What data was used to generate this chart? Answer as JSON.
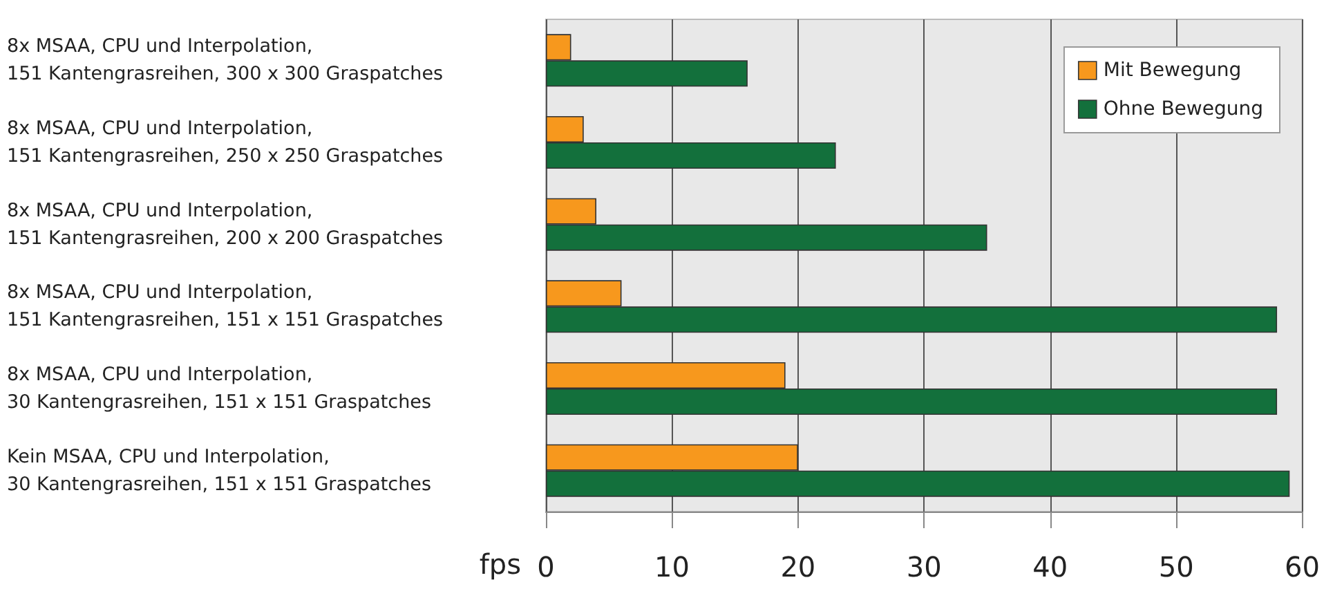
{
  "chart_data": {
    "type": "bar",
    "orientation": "horizontal",
    "xlabel": "fps",
    "categories": [
      "8x MSAA, CPU und Interpolation,\n151 Kantengrasreihen, 300 x 300 Graspatches",
      "8x MSAA, CPU und Interpolation,\n151 Kantengrasreihen, 250 x 250 Graspatches",
      "8x MSAA, CPU und Interpolation,\n151 Kantengrasreihen, 200 x 200 Graspatches",
      "8x MSAA, CPU und Interpolation,\n151 Kantengrasreihen, 151 x 151 Graspatches",
      "8x MSAA, CPU und Interpolation,\n30 Kantengrasreihen, 151 x 151 Graspatches",
      "Kein MSAA, CPU und Interpolation,\n30 Kantengrasreihen, 151 x 151 Graspatches"
    ],
    "series": [
      {
        "name": "Mit Bewegung",
        "color": "#f7981d",
        "values": [
          2,
          3,
          4,
          6,
          19,
          20
        ]
      },
      {
        "name": "Ohne Bewegung",
        "color": "#13703c",
        "values": [
          16,
          23,
          35,
          58,
          58,
          59
        ]
      }
    ],
    "xlim": [
      0,
      60
    ],
    "xticks": [
      0,
      10,
      20,
      30,
      40,
      50,
      60
    ],
    "grid": "x",
    "legend": "top right"
  }
}
